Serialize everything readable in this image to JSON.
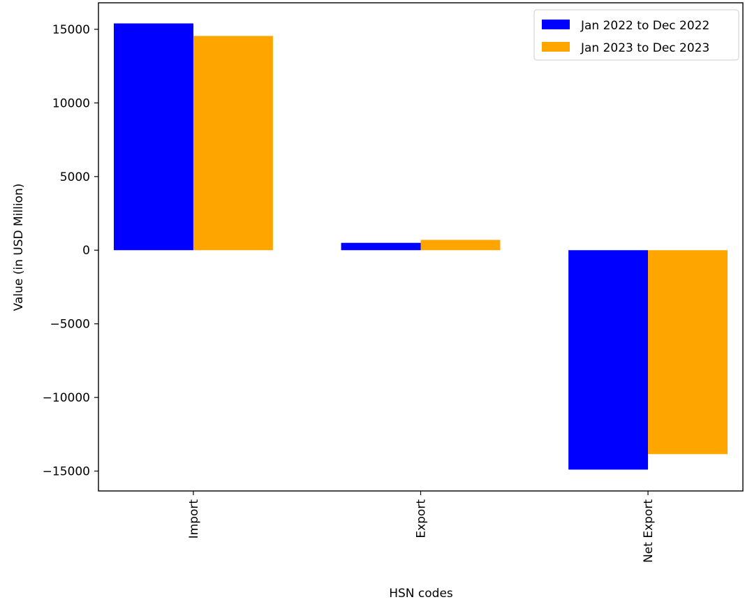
{
  "chart_data": {
    "type": "bar",
    "title": "",
    "xlabel": "HSN codes",
    "ylabel": "Value (in USD Million)",
    "categories": [
      "Import",
      "Export",
      "Net Export"
    ],
    "series": [
      {
        "name": "Jan 2022 to Dec 2022",
        "color": "#0000ff",
        "values": [
          15400,
          500,
          -14900
        ]
      },
      {
        "name": "Jan 2023 to Dec 2023",
        "color": "#ffa500",
        "values": [
          14550,
          700,
          -13850
        ]
      }
    ],
    "yticks": [
      15000,
      10000,
      5000,
      0,
      -5000,
      -10000,
      -15000
    ],
    "ytick_labels": [
      "15000",
      "10000",
      "5000",
      "0",
      "−5000",
      "−10000",
      "−15000"
    ],
    "ylim": [
      -16350,
      16800
    ],
    "grid": false,
    "legend_position": "top-right"
  }
}
